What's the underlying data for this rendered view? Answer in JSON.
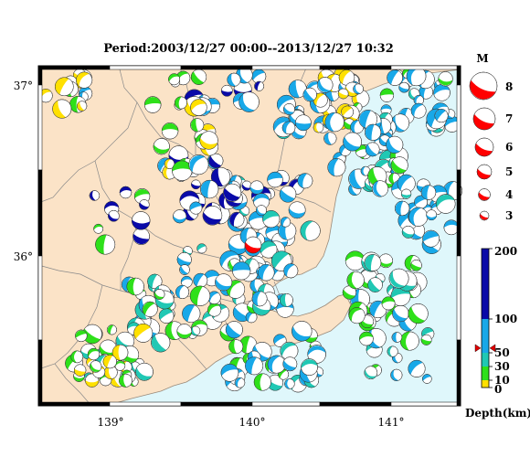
{
  "map": {
    "title": "Period:2003/12/27 00:00--2013/12/27 10:32",
    "lat_labels": [
      "37°",
      "36°"
    ],
    "lon_labels": [
      "139°",
      "140°",
      "141°"
    ],
    "lon_range": [
      138.5,
      141.5
    ],
    "lat_range": [
      35.1,
      37.1
    ],
    "colors": {
      "land": "#fbe3c7",
      "sea": "#dff7fb",
      "border": "#8a8a8a",
      "frame": "#000000",
      "mainshock": "#ff0000"
    }
  },
  "magnitude_legend": {
    "title": "M",
    "items": [
      {
        "label": "8",
        "value": 8
      },
      {
        "label": "7",
        "value": 7
      },
      {
        "label": "6",
        "value": 6
      },
      {
        "label": "5",
        "value": 5
      },
      {
        "label": "4",
        "value": 4
      },
      {
        "label": "3",
        "value": 3
      }
    ]
  },
  "depth_scale": {
    "title": "Depth(km)",
    "ticks": [
      {
        "label": "200",
        "value": 200
      },
      {
        "label": "100",
        "value": 100
      },
      {
        "label": "50",
        "value": 50
      },
      {
        "label": "30",
        "value": 30
      },
      {
        "label": "10",
        "value": 10
      },
      {
        "label": "0",
        "value": 0
      }
    ],
    "marker_depth": 57,
    "bands": [
      {
        "from": 0,
        "to": 10,
        "color": "#ffe000"
      },
      {
        "from": 10,
        "to": 30,
        "color": "#2ee01a"
      },
      {
        "from": 30,
        "to": 50,
        "color": "#20c8b4"
      },
      {
        "from": 50,
        "to": 100,
        "color": "#18a8e8"
      },
      {
        "from": 100,
        "to": 200,
        "color": "#0a0aa8"
      }
    ]
  }
}
